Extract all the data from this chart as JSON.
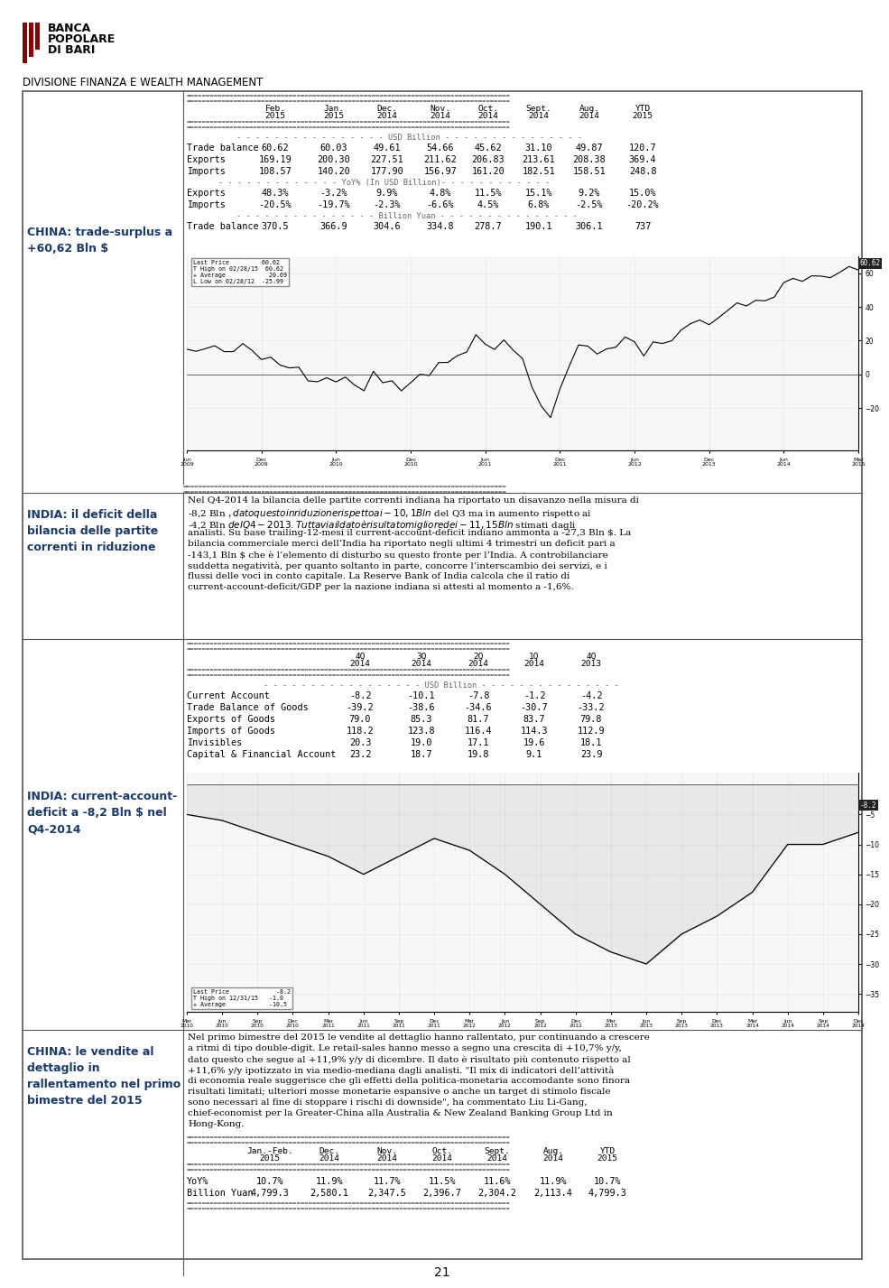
{
  "page_bg": "#ffffff",
  "header_logo_color": "#8B0000",
  "division_title": "DIVISIONE FINANZA E WEALTH MANAGEMENT",
  "section1": {
    "left_label": "CHINA: trade-surplus a\n+60,62 Bln $",
    "cols": [
      "Feb.\n2015",
      "Jan.\n2015",
      "Dec.\n2014",
      "Nov.\n2014",
      "Oct.\n2014",
      "Sept.\n2014",
      "Aug.\n2014",
      "YTD\n2015"
    ],
    "table_rows": [
      [
        "Trade balance",
        "60.62",
        "60.03",
        "49.61",
        "54.66",
        "45.62",
        "31.10",
        "49.87",
        "120.7"
      ],
      [
        "Exports",
        "169.19",
        "200.30",
        "227.51",
        "211.62",
        "206.83",
        "213.61",
        "208.38",
        "369.4"
      ],
      [
        "Imports",
        "108.57",
        "140.20",
        "177.90",
        "156.97",
        "161.20",
        "182.51",
        "158.51",
        "248.8"
      ]
    ],
    "table_rows2": [
      [
        "Exports",
        "48.3%",
        "-3.2%",
        "9.9%",
        "4.8%",
        "11.5%",
        "15.1%",
        "9.2%",
        "15.0%"
      ],
      [
        "Imports",
        "-20.5%",
        "-19.7%",
        "-2.3%",
        "-6.6%",
        "4.5%",
        "6.8%",
        "-2.5%",
        "-20.2%"
      ]
    ],
    "table_rows3": [
      [
        "Trade balance",
        "370.5",
        "366.9",
        "304.6",
        "334.8",
        "278.7",
        "190.1",
        "306.1",
        "737"
      ]
    ],
    "chart_legend": "Last Price         60.62\nT High on 02/28/15  60.62\n+ Average            20.69\nL Low on 02/28/12  -25.99",
    "chart_last_price": "60.62",
    "chart_yticks": [
      -20,
      0,
      20,
      40,
      60
    ],
    "chart_xlabels": [
      "Jun\n2009",
      "Dec\n2009",
      "Jun\n2010",
      "Dec\n2010",
      "Jun\n2011",
      "Dec\n2011",
      "Jun\n2012",
      "Dec\n2013",
      "Jun\n2014",
      "Mar\n2015"
    ]
  },
  "section2": {
    "left_label": "INDIA: il deficit della\nbilancia delle partite\ncorrenti in riduzione",
    "body_text": "Nel Q4-2014 la bilancia delle partite correnti indiana ha riportato un disavanzo nella misura di -8,2 Bln $, dato questo in riduzione rispetto ai -10,1 Bln $ del Q3 ma in aumento rispetto ai -4,2 Bln $ del Q4-2013. Tuttavia il dato è risultato migliore dei -11,15 Bln $ stimati dagli analisti. Su base trailing-12-mesi il current-account-deficit indiano ammonta a -27,3 Bln $. La bilancia commerciale merci dell’India ha riportato negli ultimi 4 trimestri un deficit pari a -143,1 Bln $ che è l’elemento di disturbo su questo fronte per l’India. A controbilanciare suddetta negatività, per quanto soltanto in parte, concorre l’interscambio dei servizi, e i flussi delle voci in conto capitale. La Reserve Bank of India calcola che il ratio di current-account-deficit/GDP per la nazione indiana si attesti al momento a -1,6%."
  },
  "section3": {
    "left_label": "INDIA: current-account-\ndeficit a -8,2 Bln $ nel\nQ4-2014",
    "cols": [
      "4Q\n2014",
      "3Q\n2014",
      "2Q\n2014",
      "1Q\n2014",
      "4Q\n2013"
    ],
    "table_rows": [
      [
        "Current Account",
        "-8.2",
        "-10.1",
        "-7.8",
        "-1.2",
        "-4.2"
      ],
      [
        "Trade Balance of Goods",
        "-39.2",
        "-38.6",
        "-34.6",
        "-30.7",
        "-33.2"
      ],
      [
        "Exports of Goods",
        "79.0",
        "85.3",
        "81.7",
        "83.7",
        "79.8"
      ],
      [
        "Imports of Goods",
        "118.2",
        "123.8",
        "116.4",
        "114.3",
        "112.9"
      ],
      [
        "Invisibles",
        "20.3",
        "19.0",
        "17.1",
        "19.6",
        "18.1"
      ],
      [
        "Capital & Financial Account",
        "23.2",
        "18.7",
        "19.8",
        "9.1",
        "23.9"
      ]
    ],
    "chart_legend": "Last Price             -8.2\nT High on 12/31/15   -1.0\n+ Average            -10.5",
    "chart_last_price": "-8.2",
    "chart_yticks": [
      -35,
      -30,
      -25,
      -20,
      -15,
      -10,
      -5
    ],
    "chart_xlabels": [
      "Mar\n2010",
      "Jun\n2010",
      "Sep\n2010",
      "Dec\n2010",
      "Mar\n2011",
      "Jun\n2011",
      "Sep\n2011",
      "Dec\n2011",
      "Mar\n2012",
      "Jun\n2012",
      "Sep\n2012",
      "Dec\n2012",
      "Mar\n2013",
      "Jun\n2013",
      "Sep\n2013",
      "Dec\n2013",
      "Mar\n2014",
      "Jun\n2014",
      "Sep\n2014",
      "Dec\n2014"
    ]
  },
  "section4": {
    "left_label": "CHINA: le vendite al\ndettaglio in\nrallentamento nel primo\nbimestre del 2015",
    "body_text": "Nel primo bimestre del 2015 le vendite al dettaglio hanno rallentato, pur continuando a crescere a ritmi di tipo double-digit. Le retail-sales hanno messo a segno una crescita di +10,7% y/y, dato questo che segue al +11,9% y/y di dicembre. Il dato è risultato più contenuto rispetto al +11,6% y/y ipotizzato in via medio-mediana dagli analisti. \"Il mix di indicatori dell’attività di economia reale suggerisce che gli effetti della politica-monetaria accomodante sono finora risultati limitati; ulteriori mosse monetarie espansive o anche un target di stimolo fiscale sono necessari al fine di stoppare i rischi di downside\", ha commentato Liu Li-Gang, chief-economist per la Greater-China alla Australia & New Zealand Banking Group Ltd in Hong-Kong.",
    "cols": [
      "Jan.-Feb.\n2015",
      "Dec.\n2014",
      "Nov.\n2014",
      "Oct.\n2014",
      "Sept.\n2014",
      "Aug.\n2014",
      "YTD\n2015"
    ],
    "table_rows": [
      [
        "YoY%",
        "10.7%",
        "11.9%",
        "11.7%",
        "11.5%",
        "11.6%",
        "11.9%",
        "10.7%"
      ],
      [
        "Billion Yuan",
        "4,799.3",
        "2,580.1",
        "2,347.5",
        "2,396.7",
        "2,304.2",
        "2,113.4",
        "4,799.3"
      ]
    ]
  },
  "page_number": "21",
  "colors": {
    "dark_blue": "#1a3a6e",
    "dark_gray": "#555555",
    "table_line": "#333333",
    "separator_color": "#888888"
  }
}
